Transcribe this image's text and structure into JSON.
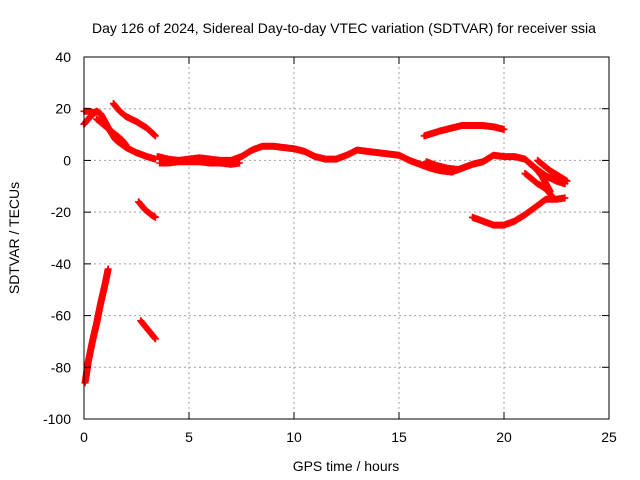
{
  "chart_data": {
    "type": "scatter",
    "title": "Day 126 of 2024, Sidereal Day-to-day VTEC variation (SDTVAR) for receiver ssia",
    "xlabel": "GPS time / hours",
    "ylabel": "SDTVAR / TECUs",
    "xlim": [
      0,
      25
    ],
    "ylim": [
      -100,
      40
    ],
    "xticks": [
      0,
      5,
      10,
      15,
      20,
      25
    ],
    "yticks": [
      -100,
      -80,
      -60,
      -40,
      -20,
      0,
      20,
      40
    ],
    "grid": true,
    "legend": "none",
    "marker": "plus",
    "color": "#ff0000",
    "tracks": [
      {
        "points": [
          [
            0,
            14
          ],
          [
            0.3,
            17
          ],
          [
            0.6,
            19
          ],
          [
            0.8,
            18
          ],
          [
            1.0,
            15
          ],
          [
            1.2,
            12
          ],
          [
            1.5,
            8
          ],
          [
            2.0,
            5
          ],
          [
            2.5,
            3
          ],
          [
            3.0,
            1.5
          ],
          [
            3.4,
            0.5
          ]
        ]
      },
      {
        "points": [
          [
            0,
            19
          ],
          [
            0.2,
            19
          ],
          [
            0.5,
            18.5
          ]
        ]
      },
      {
        "points": [
          [
            0.6,
            16
          ],
          [
            0.9,
            14
          ],
          [
            1.2,
            12
          ],
          [
            1.5,
            10
          ],
          [
            1.8,
            8
          ],
          [
            2.0,
            6
          ]
        ]
      },
      {
        "points": [
          [
            1.4,
            22
          ],
          [
            1.7,
            19
          ],
          [
            2.0,
            17
          ],
          [
            2.5,
            15
          ],
          [
            3.0,
            12.5
          ],
          [
            3.4,
            9.5
          ]
        ]
      },
      {
        "points": [
          [
            2.6,
            -16
          ],
          [
            2.9,
            -19
          ],
          [
            3.2,
            -21
          ],
          [
            3.4,
            -22
          ]
        ]
      },
      {
        "points": [
          [
            1.15,
            -42
          ],
          [
            1.0,
            -48
          ],
          [
            0.8,
            -55
          ],
          [
            0.6,
            -63
          ],
          [
            0.4,
            -70
          ],
          [
            0.2,
            -78
          ],
          [
            0.05,
            -86
          ]
        ]
      },
      {
        "points": [
          [
            2.7,
            -62
          ],
          [
            2.9,
            -64
          ],
          [
            3.1,
            -66
          ],
          [
            3.3,
            -68
          ],
          [
            3.4,
            -69
          ]
        ]
      },
      {
        "points": [
          [
            3.5,
            1.5
          ],
          [
            4.0,
            0.5
          ],
          [
            4.5,
            0
          ],
          [
            5.0,
            0.5
          ],
          [
            5.5,
            1
          ],
          [
            6.0,
            0.5
          ],
          [
            6.5,
            0
          ],
          [
            7.0,
            0
          ],
          [
            7.5,
            1.5
          ],
          [
            8.0,
            4
          ],
          [
            8.5,
            5.5
          ],
          [
            9.0,
            5.5
          ],
          [
            9.5,
            5
          ],
          [
            10.0,
            4.5
          ],
          [
            10.5,
            3.5
          ],
          [
            11.0,
            1.5
          ],
          [
            11.5,
            0.5
          ],
          [
            12.0,
            0.5
          ],
          [
            12.5,
            2
          ],
          [
            13.0,
            4
          ],
          [
            13.5,
            3.5
          ],
          [
            14.0,
            3
          ],
          [
            14.5,
            2.5
          ],
          [
            15.0,
            2
          ],
          [
            15.5,
            0
          ],
          [
            16.0,
            -1.5
          ],
          [
            16.5,
            -3
          ],
          [
            17.0,
            -4
          ],
          [
            17.5,
            -4.5
          ],
          [
            18.0,
            -3
          ],
          [
            18.5,
            -1.5
          ],
          [
            19.0,
            -0.5
          ],
          [
            19.5,
            2
          ],
          [
            20.0,
            1.5
          ],
          [
            20.5,
            1.5
          ],
          [
            21.0,
            0.5
          ],
          [
            21.5,
            -3
          ],
          [
            22.0,
            -6
          ],
          [
            22.5,
            -8
          ],
          [
            22.9,
            -9
          ]
        ]
      },
      {
        "points": [
          [
            3.6,
            -1
          ],
          [
            4.0,
            -1
          ],
          [
            4.5,
            -0.5
          ],
          [
            5.0,
            -0.5
          ],
          [
            5.5,
            -0.5
          ],
          [
            6.0,
            -1
          ],
          [
            6.5,
            -1
          ],
          [
            7.0,
            -1.5
          ],
          [
            7.4,
            -1
          ]
        ]
      },
      {
        "points": [
          [
            16.3,
            -0.5
          ],
          [
            16.8,
            -2
          ],
          [
            17.3,
            -3
          ],
          [
            17.8,
            -3.5
          ]
        ]
      },
      {
        "points": [
          [
            16.2,
            9.5
          ],
          [
            16.6,
            10.5
          ],
          [
            17.0,
            11.5
          ],
          [
            17.5,
            12.5
          ],
          [
            18.0,
            13.5
          ],
          [
            18.5,
            13.5
          ],
          [
            19.0,
            13.5
          ],
          [
            19.5,
            13
          ],
          [
            20.0,
            12
          ]
        ]
      },
      {
        "points": [
          [
            18.5,
            -22
          ],
          [
            19.0,
            -23.5
          ],
          [
            19.5,
            -25
          ],
          [
            20.0,
            -25
          ],
          [
            20.5,
            -23.5
          ],
          [
            21.0,
            -21
          ],
          [
            21.5,
            -18
          ],
          [
            22.0,
            -15
          ],
          [
            22.5,
            -15
          ],
          [
            22.9,
            -14.5
          ]
        ]
      },
      {
        "points": [
          [
            21.0,
            -5
          ],
          [
            21.3,
            -7
          ],
          [
            21.6,
            -9
          ],
          [
            22.0,
            -11
          ],
          [
            22.3,
            -14
          ]
        ]
      },
      {
        "points": [
          [
            21.2,
            -1
          ],
          [
            21.5,
            -3
          ],
          [
            21.8,
            -6
          ],
          [
            22.0,
            -9
          ],
          [
            22.2,
            -12
          ]
        ]
      },
      {
        "points": [
          [
            21.6,
            0
          ],
          [
            21.9,
            -2
          ],
          [
            22.2,
            -4
          ],
          [
            22.5,
            -5.5
          ],
          [
            22.8,
            -7
          ],
          [
            23.0,
            -8
          ]
        ]
      }
    ]
  }
}
